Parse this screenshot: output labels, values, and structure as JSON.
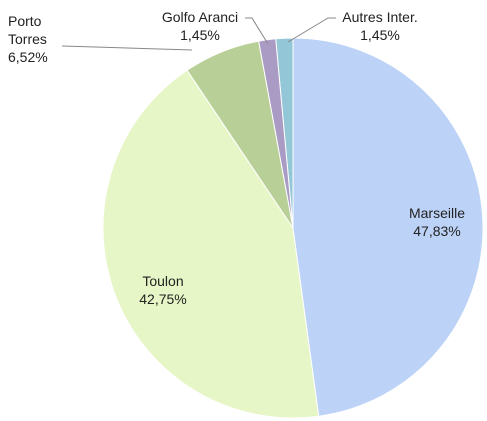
{
  "chart_data": {
    "type": "pie",
    "categories": [
      "Marseille",
      "Toulon",
      "Porto Torres",
      "Golfo Aranci",
      "Autres Inter."
    ],
    "values": [
      47.83,
      42.75,
      6.52,
      1.45,
      1.45
    ],
    "value_labels": [
      "47,83%",
      "42,75%",
      "6,52%",
      "1,45%",
      "1,45%"
    ],
    "colors": [
      "#bcd3f7",
      "#e6f6c6",
      "#b8cf97",
      "#a99bc4",
      "#93c6d6"
    ]
  }
}
